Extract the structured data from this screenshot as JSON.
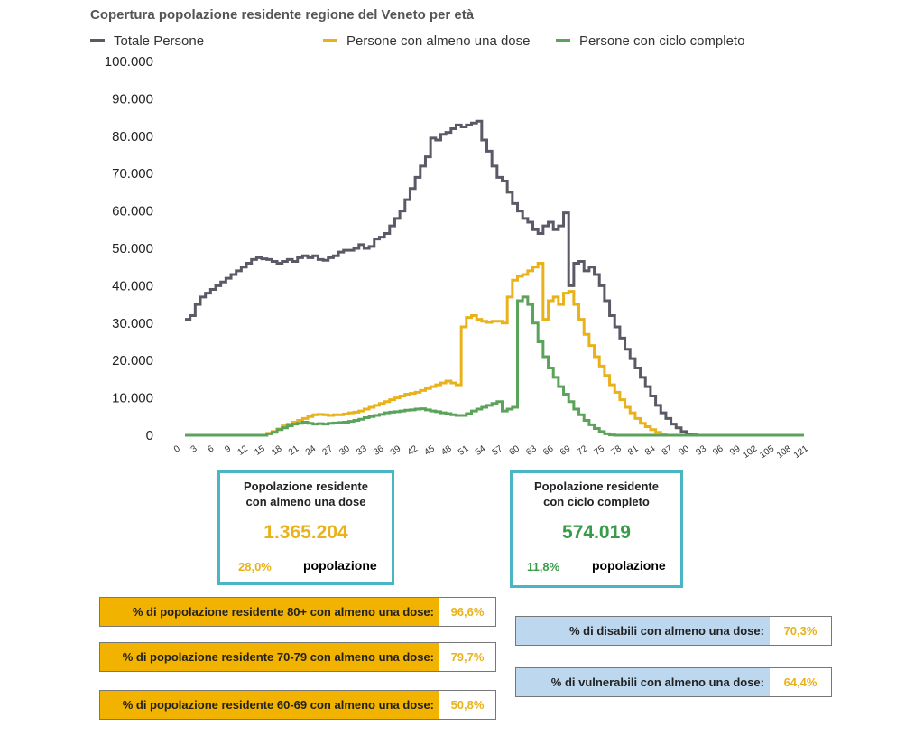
{
  "chart_data": {
    "type": "line",
    "title": "Copertura popolazione residente regione del Veneto per età",
    "xlabel": "",
    "ylabel": "",
    "xlim": [
      0,
      121
    ],
    "ylim": [
      0,
      100000
    ],
    "x_ticks": [
      "0",
      "3",
      "6",
      "9",
      "12",
      "15",
      "18",
      "21",
      "24",
      "27",
      "30",
      "33",
      "36",
      "39",
      "42",
      "45",
      "48",
      "51",
      "54",
      "57",
      "60",
      "63",
      "66",
      "69",
      "72",
      "75",
      "78",
      "81",
      "84",
      "87",
      "90",
      "93",
      "96",
      "99",
      "102",
      "105",
      "108",
      "121"
    ],
    "y_ticks": [
      "0",
      "10.000",
      "20.000",
      "30.000",
      "40.000",
      "50.000",
      "60.000",
      "70.000",
      "80.000",
      "90.000",
      "100.000"
    ],
    "grid": false,
    "legend_position": "top",
    "series": [
      {
        "name": "Totale Persone",
        "color": "#5a5a66",
        "points": [
          [
            0,
            31000
          ],
          [
            1,
            32000
          ],
          [
            2,
            35000
          ],
          [
            3,
            37000
          ],
          [
            4,
            38000
          ],
          [
            5,
            39000
          ],
          [
            6,
            40000
          ],
          [
            7,
            41000
          ],
          [
            8,
            42000
          ],
          [
            9,
            43000
          ],
          [
            10,
            44000
          ],
          [
            11,
            45000
          ],
          [
            12,
            46000
          ],
          [
            13,
            47000
          ],
          [
            14,
            47500
          ],
          [
            15,
            47200
          ],
          [
            16,
            47000
          ],
          [
            17,
            46500
          ],
          [
            18,
            46000
          ],
          [
            19,
            46500
          ],
          [
            20,
            47000
          ],
          [
            21,
            46500
          ],
          [
            22,
            47500
          ],
          [
            23,
            48000
          ],
          [
            24,
            47500
          ],
          [
            25,
            48000
          ],
          [
            26,
            47000
          ],
          [
            27,
            46800
          ],
          [
            28,
            47500
          ],
          [
            29,
            48000
          ],
          [
            30,
            49000
          ],
          [
            31,
            49500
          ],
          [
            32,
            49500
          ],
          [
            33,
            50000
          ],
          [
            34,
            51000
          ],
          [
            35,
            50000
          ],
          [
            36,
            50500
          ],
          [
            37,
            52500
          ],
          [
            38,
            53000
          ],
          [
            39,
            54000
          ],
          [
            40,
            56000
          ],
          [
            41,
            58000
          ],
          [
            42,
            60000
          ],
          [
            43,
            63000
          ],
          [
            44,
            66000
          ],
          [
            45,
            69000
          ],
          [
            46,
            72000
          ],
          [
            47,
            74500
          ],
          [
            48,
            79500
          ],
          [
            49,
            79000
          ],
          [
            50,
            80500
          ],
          [
            51,
            81000
          ],
          [
            52,
            82000
          ],
          [
            53,
            83000
          ],
          [
            54,
            82500
          ],
          [
            55,
            83000
          ],
          [
            56,
            83500
          ],
          [
            57,
            84000
          ],
          [
            58,
            79000
          ],
          [
            59,
            76000
          ],
          [
            60,
            72000
          ],
          [
            61,
            69000
          ],
          [
            62,
            68000
          ],
          [
            63,
            65000
          ],
          [
            64,
            62000
          ],
          [
            65,
            60000
          ],
          [
            66,
            58000
          ],
          [
            67,
            57000
          ],
          [
            68,
            55000
          ],
          [
            69,
            54000
          ],
          [
            70,
            56000
          ],
          [
            71,
            57000
          ],
          [
            72,
            55000
          ],
          [
            73,
            56000
          ],
          [
            74,
            59500
          ],
          [
            75,
            40000
          ],
          [
            76,
            46000
          ],
          [
            77,
            46500
          ],
          [
            78,
            44000
          ],
          [
            79,
            45000
          ],
          [
            80,
            43000
          ],
          [
            81,
            40000
          ],
          [
            82,
            36000
          ],
          [
            83,
            32000
          ],
          [
            84,
            29000
          ],
          [
            85,
            26000
          ],
          [
            86,
            23000
          ],
          [
            87,
            20500
          ],
          [
            88,
            18000
          ],
          [
            89,
            15500
          ],
          [
            90,
            13000
          ],
          [
            91,
            10500
          ],
          [
            92,
            8000
          ],
          [
            93,
            6000
          ],
          [
            94,
            4500
          ],
          [
            95,
            3000
          ],
          [
            96,
            2000
          ],
          [
            97,
            1000
          ],
          [
            98,
            300
          ],
          [
            99,
            100
          ],
          [
            100,
            0
          ],
          [
            121,
            0
          ]
        ]
      },
      {
        "name": "Persone con almeno una dose",
        "color": "#e9b21b",
        "points": [
          [
            0,
            0
          ],
          [
            15,
            0
          ],
          [
            16,
            500
          ],
          [
            17,
            1000
          ],
          [
            18,
            1700
          ],
          [
            19,
            2500
          ],
          [
            20,
            3000
          ],
          [
            21,
            3500
          ],
          [
            22,
            4000
          ],
          [
            23,
            4500
          ],
          [
            24,
            5000
          ],
          [
            25,
            5500
          ],
          [
            26,
            5600
          ],
          [
            27,
            5500
          ],
          [
            28,
            5300
          ],
          [
            29,
            5500
          ],
          [
            30,
            5500
          ],
          [
            31,
            5700
          ],
          [
            32,
            6000
          ],
          [
            33,
            6200
          ],
          [
            34,
            6500
          ],
          [
            35,
            7000
          ],
          [
            36,
            7500
          ],
          [
            37,
            8000
          ],
          [
            38,
            8500
          ],
          [
            39,
            9000
          ],
          [
            40,
            9500
          ],
          [
            41,
            10000
          ],
          [
            42,
            10500
          ],
          [
            43,
            11000
          ],
          [
            44,
            11200
          ],
          [
            45,
            11500
          ],
          [
            46,
            12000
          ],
          [
            47,
            12500
          ],
          [
            48,
            13000
          ],
          [
            49,
            13500
          ],
          [
            50,
            14000
          ],
          [
            51,
            14500
          ],
          [
            52,
            14000
          ],
          [
            53,
            13500
          ],
          [
            54,
            29000
          ],
          [
            55,
            31500
          ],
          [
            56,
            32000
          ],
          [
            57,
            31000
          ],
          [
            58,
            30500
          ],
          [
            59,
            30200
          ],
          [
            60,
            30500
          ],
          [
            61,
            30500
          ],
          [
            62,
            30000
          ],
          [
            63,
            37000
          ],
          [
            64,
            41500
          ],
          [
            65,
            42500
          ],
          [
            66,
            43000
          ],
          [
            67,
            44000
          ],
          [
            68,
            45000
          ],
          [
            69,
            46000
          ],
          [
            70,
            31000
          ],
          [
            71,
            36000
          ],
          [
            72,
            37000
          ],
          [
            73,
            35000
          ],
          [
            74,
            38000
          ],
          [
            75,
            38500
          ],
          [
            76,
            35000
          ],
          [
            77,
            31000
          ],
          [
            78,
            27000
          ],
          [
            79,
            24000
          ],
          [
            80,
            21000
          ],
          [
            81,
            18500
          ],
          [
            82,
            16000
          ],
          [
            83,
            13500
          ],
          [
            84,
            11500
          ],
          [
            85,
            9500
          ],
          [
            86,
            7500
          ],
          [
            87,
            6000
          ],
          [
            88,
            4500
          ],
          [
            89,
            3200
          ],
          [
            90,
            2300
          ],
          [
            91,
            1500
          ],
          [
            92,
            800
          ],
          [
            93,
            300
          ],
          [
            94,
            0
          ],
          [
            121,
            0
          ]
        ]
      },
      {
        "name": "Persone con ciclo completo",
        "color": "#5ba35a",
        "points": [
          [
            0,
            0
          ],
          [
            15,
            0
          ],
          [
            16,
            400
          ],
          [
            17,
            800
          ],
          [
            18,
            1500
          ],
          [
            19,
            2000
          ],
          [
            20,
            2500
          ],
          [
            21,
            3000
          ],
          [
            22,
            3200
          ],
          [
            23,
            3500
          ],
          [
            24,
            3200
          ],
          [
            25,
            3000
          ],
          [
            26,
            3100
          ],
          [
            27,
            3000
          ],
          [
            28,
            3200
          ],
          [
            29,
            3300
          ],
          [
            30,
            3400
          ],
          [
            31,
            3500
          ],
          [
            32,
            3700
          ],
          [
            33,
            4000
          ],
          [
            34,
            4300
          ],
          [
            35,
            4700
          ],
          [
            36,
            5000
          ],
          [
            37,
            5300
          ],
          [
            38,
            5600
          ],
          [
            39,
            6000
          ],
          [
            40,
            6200
          ],
          [
            41,
            6300
          ],
          [
            42,
            6500
          ],
          [
            43,
            6700
          ],
          [
            44,
            6800
          ],
          [
            45,
            7000
          ],
          [
            46,
            7100
          ],
          [
            47,
            6800
          ],
          [
            48,
            6500
          ],
          [
            49,
            6300
          ],
          [
            50,
            6000
          ],
          [
            51,
            5800
          ],
          [
            52,
            5500
          ],
          [
            53,
            5300
          ],
          [
            54,
            5300
          ],
          [
            55,
            5800
          ],
          [
            56,
            6500
          ],
          [
            57,
            7000
          ],
          [
            58,
            7500
          ],
          [
            59,
            8000
          ],
          [
            60,
            8500
          ],
          [
            61,
            9000
          ],
          [
            62,
            6500
          ],
          [
            63,
            7000
          ],
          [
            64,
            7500
          ],
          [
            65,
            36000
          ],
          [
            66,
            37000
          ],
          [
            67,
            35000
          ],
          [
            68,
            30000
          ],
          [
            69,
            25000
          ],
          [
            70,
            21000
          ],
          [
            71,
            18000
          ],
          [
            72,
            15500
          ],
          [
            73,
            13000
          ],
          [
            74,
            11000
          ],
          [
            75,
            9000
          ],
          [
            76,
            7000
          ],
          [
            77,
            5500
          ],
          [
            78,
            4000
          ],
          [
            79,
            2800
          ],
          [
            80,
            1800
          ],
          [
            81,
            1000
          ],
          [
            82,
            400
          ],
          [
            83,
            100
          ],
          [
            84,
            0
          ],
          [
            121,
            0
          ]
        ]
      }
    ]
  },
  "summary": {
    "dose": {
      "title_l1": "Popolazione residente",
      "title_l2": "con almeno una dose",
      "value": "1.365.204",
      "percent": "28,0%",
      "word": "popolazione"
    },
    "complete": {
      "title_l1": "Popolazione residente",
      "title_l2": "con ciclo completo",
      "value": "574.019",
      "percent": "11,8%",
      "word": "popolazione"
    }
  },
  "age_rows": [
    {
      "label": "% di popolazione residente 80+ con almeno una dose:",
      "value": "96,6%"
    },
    {
      "label": "% di popolazione residente 70-79 con almeno una dose:",
      "value": "79,7%"
    },
    {
      "label": "% di popolazione residente 60-69 con almeno una dose:",
      "value": "50,8%"
    }
  ],
  "group_rows": [
    {
      "label": "% di disabili con almeno una dose:",
      "value": "70,3%"
    },
    {
      "label": "% di vulnerabili con almeno una dose:",
      "value": "64,4%"
    }
  ]
}
